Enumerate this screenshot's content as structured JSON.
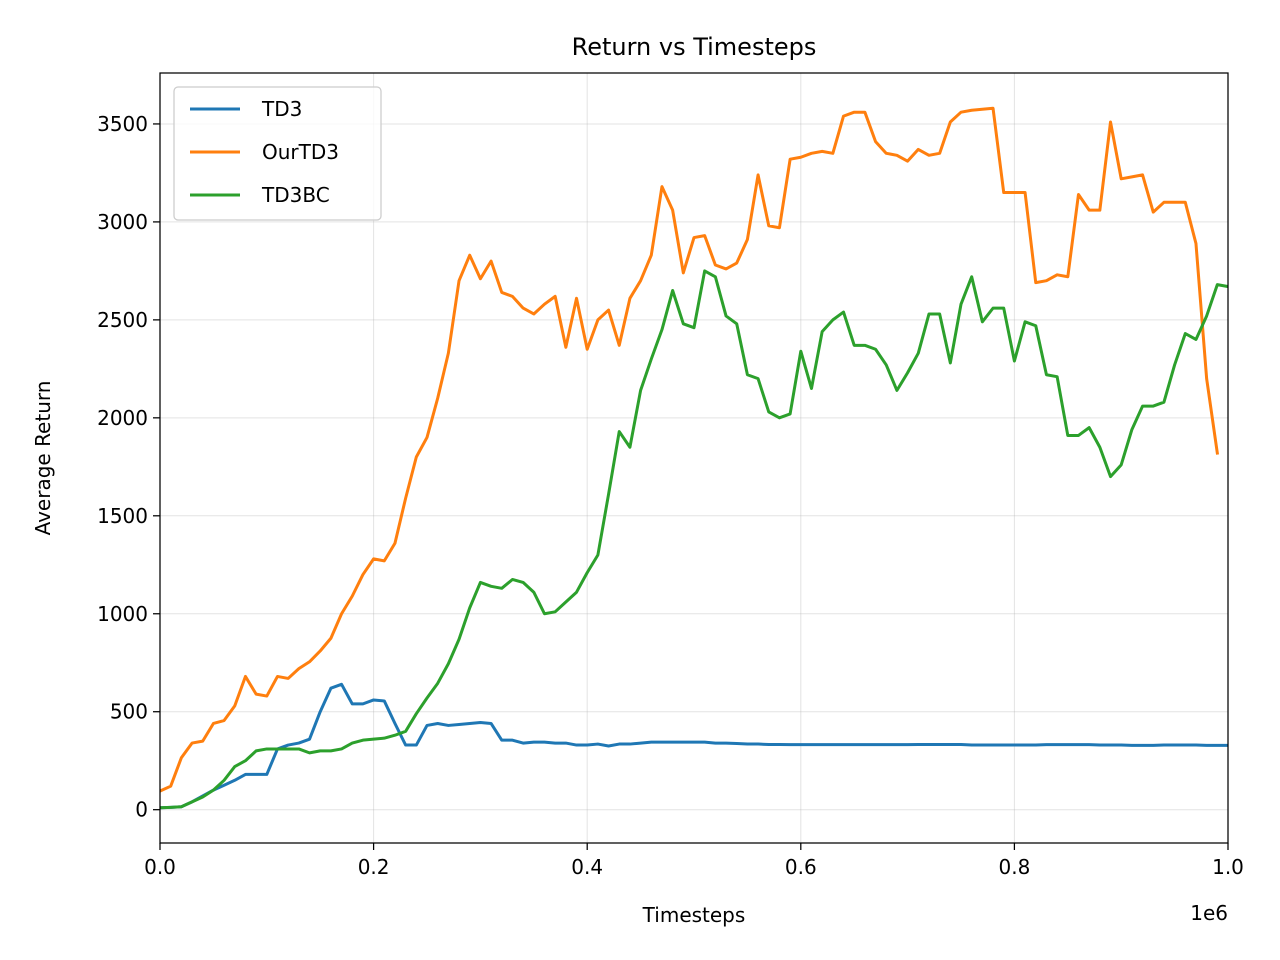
{
  "chart_data": {
    "type": "line",
    "title": "Return vs Timesteps",
    "xlabel": "Timesteps",
    "ylabel": "Average Return",
    "x_offset_label": "1e6",
    "xlim": [
      0.0,
      1.0
    ],
    "ylim": [
      -170,
      3760
    ],
    "x_ticks": [
      0.0,
      0.2,
      0.4,
      0.6,
      0.8,
      1.0
    ],
    "x_tick_labels": [
      "0.0",
      "0.2",
      "0.4",
      "0.6",
      "0.8",
      "1.0"
    ],
    "y_ticks": [
      0,
      500,
      1000,
      1500,
      2000,
      2500,
      3000,
      3500
    ],
    "y_tick_labels": [
      "0",
      "500",
      "1000",
      "1500",
      "2000",
      "2500",
      "3000",
      "3500"
    ],
    "grid": true,
    "legend_position": "top-left",
    "x": [
      0.0,
      0.01,
      0.02,
      0.03,
      0.04,
      0.05,
      0.06,
      0.07,
      0.08,
      0.09,
      0.1,
      0.11,
      0.12,
      0.13,
      0.14,
      0.15,
      0.16,
      0.17,
      0.18,
      0.19,
      0.2,
      0.21,
      0.22,
      0.23,
      0.24,
      0.25,
      0.26,
      0.27,
      0.28,
      0.29,
      0.3,
      0.31,
      0.32,
      0.33,
      0.34,
      0.35,
      0.36,
      0.37,
      0.38,
      0.39,
      0.4,
      0.41,
      0.42,
      0.43,
      0.44,
      0.45,
      0.46,
      0.47,
      0.48,
      0.49,
      0.5,
      0.51,
      0.52,
      0.53,
      0.54,
      0.55,
      0.56,
      0.57,
      0.58,
      0.59,
      0.6,
      0.61,
      0.62,
      0.63,
      0.64,
      0.65,
      0.66,
      0.67,
      0.68,
      0.69,
      0.7,
      0.71,
      0.72,
      0.73,
      0.74,
      0.75,
      0.76,
      0.77,
      0.78,
      0.79,
      0.8,
      0.81,
      0.82,
      0.83,
      0.84,
      0.85,
      0.86,
      0.87,
      0.88,
      0.89,
      0.9,
      0.91,
      0.92,
      0.93,
      0.94,
      0.95,
      0.96,
      0.97,
      0.98,
      0.99,
      1.0
    ],
    "series": [
      {
        "name": "TD3",
        "color": "#1f77b4",
        "values": [
          10,
          12,
          15,
          40,
          70,
          100,
          125,
          150,
          180,
          180,
          180,
          310,
          330,
          340,
          360,
          500,
          620,
          640,
          540,
          540,
          560,
          555,
          440,
          330,
          330,
          430,
          440,
          430,
          435,
          440,
          445,
          440,
          355,
          355,
          340,
          345,
          345,
          340,
          340,
          330,
          330,
          335,
          325,
          335,
          335,
          340,
          345,
          345,
          345,
          345,
          345,
          345,
          340,
          340,
          338,
          335,
          335,
          333,
          333,
          332,
          332,
          332,
          332,
          332,
          332,
          332,
          332,
          332,
          332,
          332,
          332,
          333,
          333,
          333,
          333,
          333,
          330,
          330,
          330,
          330,
          330,
          330,
          330,
          332,
          332,
          332,
          332,
          332,
          330,
          330,
          330,
          328,
          328,
          328,
          330,
          330,
          330,
          330,
          328,
          328,
          328
        ]
      },
      {
        "name": "OurTD3",
        "color": "#ff7f0e",
        "values": [
          95,
          120,
          265,
          340,
          350,
          440,
          455,
          530,
          680,
          590,
          580,
          680,
          670,
          720,
          755,
          810,
          875,
          1000,
          1090,
          1200,
          1280,
          1270,
          1360,
          1590,
          1800,
          1900,
          2100,
          2330,
          2700,
          2830,
          2710,
          2800,
          2640,
          2620,
          2560,
          2530,
          2580,
          2620,
          2360,
          2610,
          2350,
          2500,
          2550,
          2370,
          2610,
          2700,
          2830,
          3180,
          3060,
          2740,
          2920,
          2930,
          2780,
          2760,
          2790,
          2910,
          3240,
          2980,
          2970,
          3320,
          3330,
          3350,
          3360,
          3350,
          3540,
          3560,
          3560,
          3410,
          3350,
          3340,
          3310,
          3370,
          3340,
          3350,
          3510,
          3560,
          3570,
          3575,
          3580,
          3150,
          3150,
          3150,
          2690,
          2700,
          2730,
          2720,
          3140,
          3060,
          3060,
          3510,
          3220,
          3230,
          3240,
          3050,
          3100,
          3100,
          3100,
          2890,
          2200,
          1820,
          null
        ]
      },
      {
        "name": "TD3BC",
        "color": "#2ca02c",
        "values": [
          10,
          12,
          15,
          40,
          65,
          100,
          150,
          220,
          250,
          300,
          310,
          310,
          310,
          310,
          290,
          300,
          300,
          310,
          340,
          355,
          360,
          365,
          380,
          400,
          490,
          570,
          645,
          745,
          870,
          1030,
          1160,
          1140,
          1130,
          1175,
          1160,
          1110,
          1000,
          1010,
          1060,
          1110,
          1210,
          1300,
          1610,
          1930,
          1850,
          2140,
          2300,
          2450,
          2650,
          2480,
          2460,
          2750,
          2720,
          2520,
          2480,
          2220,
          2200,
          2030,
          2000,
          2020,
          2340,
          2150,
          2440,
          2500,
          2540,
          2370,
          2370,
          2350,
          2270,
          2140,
          2230,
          2330,
          2530,
          2530,
          2280,
          2580,
          2720,
          2490,
          2560,
          2560,
          2290,
          2490,
          2470,
          2220,
          2210,
          1910,
          1910,
          1950,
          1850,
          1700,
          1760,
          1940,
          2060,
          2060,
          2080,
          2270,
          2430,
          2400,
          2520,
          2680,
          2670
        ]
      }
    ]
  }
}
